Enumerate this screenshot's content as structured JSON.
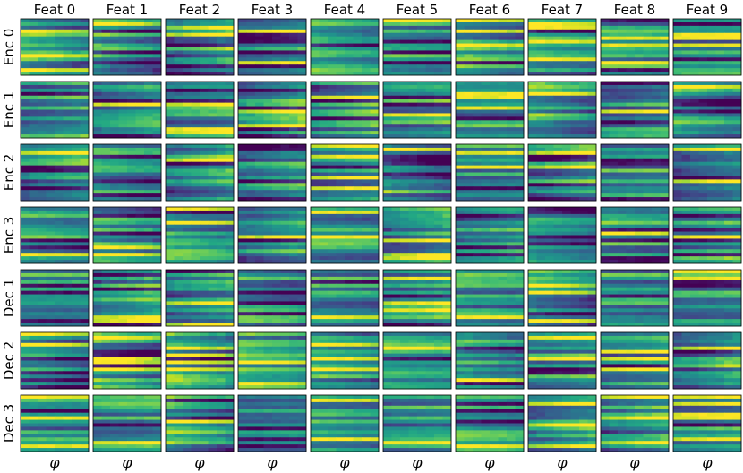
{
  "chart_data": {
    "type": "heatmap",
    "title": "",
    "colormap": "viridis",
    "columns": [
      "Feat 0",
      "Feat 1",
      "Feat 2",
      "Feat 3",
      "Feat 4",
      "Feat 5",
      "Feat 6",
      "Feat 7",
      "Feat 8",
      "Feat 9"
    ],
    "rows": [
      "Enc 0",
      "Enc 1",
      "Enc 2",
      "Enc 3",
      "Dec 1",
      "Dec 2",
      "Dec 3"
    ],
    "xlabel": "φ",
    "ylabel": "",
    "cells_per_panel": {
      "rows": 16,
      "cols": 8
    },
    "value_range": [
      0,
      1
    ],
    "generator": {
      "description": "Each panel is a 16x8 heatmap dominated by horizontal bands with slight left-right drift; values are approximate",
      "seed": 7
    }
  },
  "colors": {
    "viridis": [
      "#440154",
      "#482475",
      "#414487",
      "#355f8d",
      "#2a788e",
      "#21918c",
      "#22a884",
      "#44bf70",
      "#7ad151",
      "#bddf26",
      "#fde725"
    ],
    "frame": "#000000",
    "background": "#ffffff"
  }
}
